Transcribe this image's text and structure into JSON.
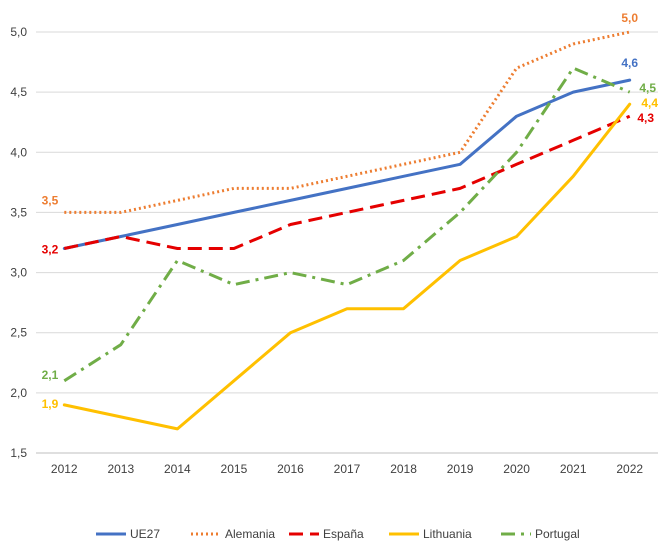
{
  "chart_data": {
    "type": "line",
    "title": "",
    "xlabel": "",
    "ylabel": "",
    "x": [
      "2012",
      "2013",
      "2014",
      "2015",
      "2016",
      "2017",
      "2018",
      "2019",
      "2020",
      "2021",
      "2022"
    ],
    "ylim": [
      1.5,
      5.0
    ],
    "yticks": [
      "1,5",
      "2,0",
      "2,5",
      "3,0",
      "3,5",
      "4,0",
      "4,5",
      "5,0"
    ],
    "grid": "horizontal",
    "legend_position": "bottom",
    "series": [
      {
        "name": "UE27",
        "color": "#4472C4",
        "dash": "solid",
        "values": [
          3.2,
          3.3,
          3.4,
          3.5,
          3.6,
          3.7,
          3.8,
          3.9,
          4.3,
          4.5,
          4.6
        ],
        "labels": [
          {
            "index": 10,
            "text": "4,6"
          }
        ]
      },
      {
        "name": "Alemania",
        "color": "#ED7D31",
        "dash": "dotted",
        "values": [
          3.5,
          3.5,
          3.6,
          3.7,
          3.7,
          3.8,
          3.9,
          4.0,
          4.7,
          4.9,
          5.0
        ],
        "labels": [
          {
            "index": 0,
            "text": "3,5"
          },
          {
            "index": 10,
            "text": "5,0"
          }
        ]
      },
      {
        "name": "España",
        "color": "#E50000",
        "dash": "dashed",
        "values": [
          3.2,
          3.3,
          3.2,
          3.2,
          3.4,
          3.5,
          3.6,
          3.7,
          3.9,
          4.1,
          4.3
        ],
        "labels": [
          {
            "index": 0,
            "text": "3,2"
          },
          {
            "index": 10,
            "text": "4,3"
          }
        ]
      },
      {
        "name": "Lithuania",
        "color": "#FFC000",
        "dash": "solid",
        "values": [
          1.9,
          1.8,
          1.7,
          2.1,
          2.5,
          2.7,
          2.7,
          3.1,
          3.3,
          3.8,
          4.4
        ],
        "labels": [
          {
            "index": 0,
            "text": "1,9"
          },
          {
            "index": 10,
            "text": "4,4"
          }
        ]
      },
      {
        "name": "Portugal",
        "color": "#70AD47",
        "dash": "dashdot",
        "values": [
          2.1,
          2.4,
          3.1,
          2.9,
          3.0,
          2.9,
          3.1,
          3.5,
          4.0,
          4.7,
          4.5
        ],
        "labels": [
          {
            "index": 0,
            "text": "2,1"
          },
          {
            "index": 10,
            "text": "4,5"
          }
        ]
      }
    ]
  }
}
